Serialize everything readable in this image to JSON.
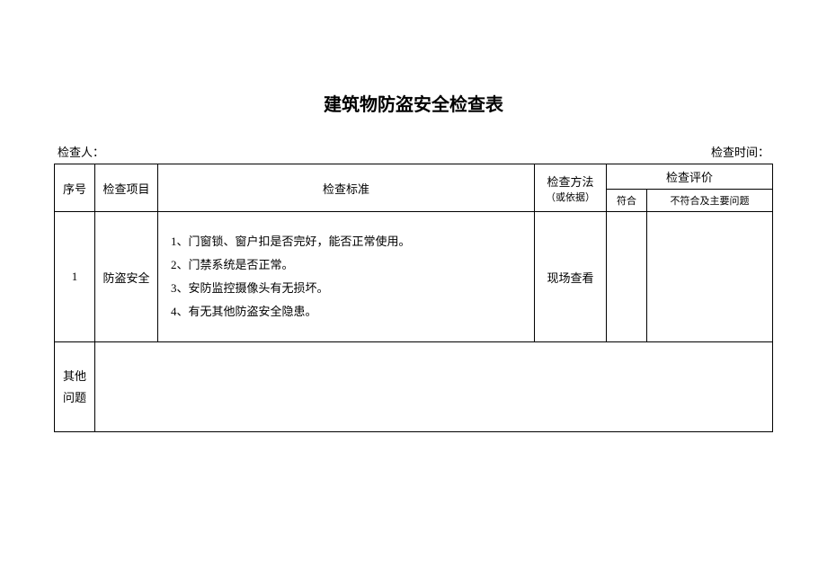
{
  "title": "建筑物防盗安全检查表",
  "inspector_label": "检查人：",
  "inspect_time_label": "检查时间：",
  "columns": {
    "seq": "序号",
    "item": "检查项目",
    "standard": "检查标准",
    "method_line1": "检查方法",
    "method_line2": "（或依据）",
    "evaluation": "检查评价",
    "conform": "符合",
    "nonconform": "不符合及主要问题"
  },
  "rows": [
    {
      "seq": "1",
      "item": "防盗安全",
      "standard_lines": [
        "1、门窗锁、窗户扣是否完好，能否正常使用。",
        "2、门禁系统是否正常。",
        "3、安防监控摄像头有无损坏。",
        "4、有无其他防盗安全隐患。"
      ],
      "method": "现场查看",
      "conform": "",
      "nonconform": ""
    }
  ],
  "other_label_line1": "其他",
  "other_label_line2": "问题",
  "colors": {
    "background": "#ffffff",
    "border": "#000000",
    "text": "#000000"
  }
}
